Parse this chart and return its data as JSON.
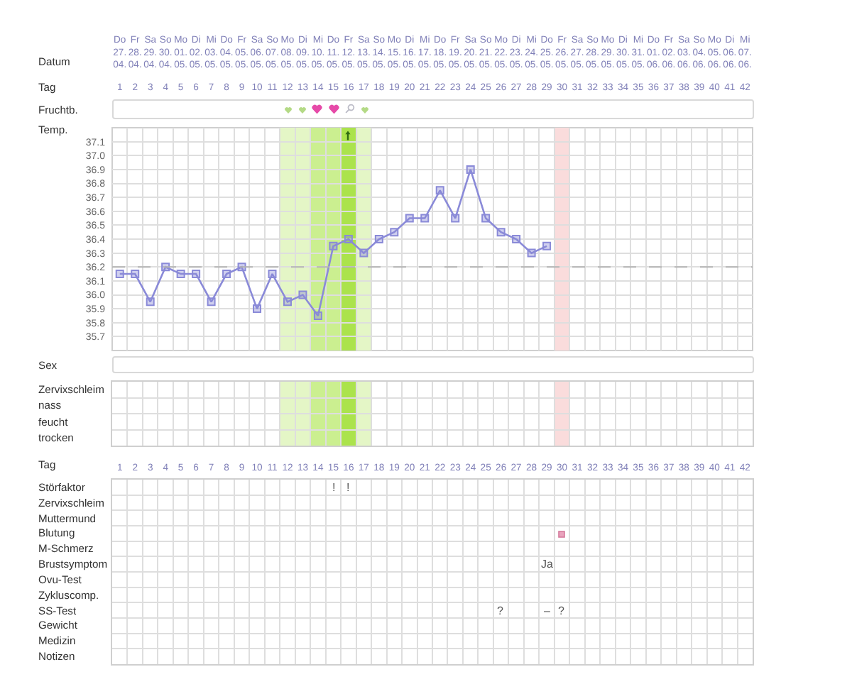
{
  "chart_data": [
    {
      "type": "line",
      "ylabel": "Temp.",
      "xlabel": "Datum",
      "x2label": "Tag",
      "annotations": [
        "Fruchtb."
      ],
      "categories": [
        "Do\n27.\n04.",
        "Fr\n28.\n04.",
        "Sa\n29.\n04.",
        "So\n30.\n04.",
        "Mo\n01.\n05.",
        "Di\n02.\n05.",
        "Mi\n03.\n05.",
        "Do\n04.\n05.",
        "Fr\n05.\n05.",
        "Sa\n06.\n05.",
        "So\n07.\n05.",
        "Mo\n08.\n05.",
        "Di\n09.\n05.",
        "Mi\n10.\n05.",
        "Do\n11.\n05.",
        "Fr\n12.\n05.",
        "Sa\n13.\n05.",
        "So\n14.\n05.",
        "Mo\n15.\n05.",
        "Di\n16.\n05.",
        "Mi\n17.\n05.",
        "Do\n18.\n05.",
        "Fr\n19.\n05.",
        "Sa\n20.\n05.",
        "So\n21.\n05.",
        "Mo\n22.\n05.",
        "Di\n23.\n05.",
        "Mi\n24.\n05.",
        "Do\n25.\n05.",
        "Fr\n26.\n05.",
        "Sa\n27.\n05.",
        "So\n28.\n05.",
        "Mo\n29.\n05.",
        "Di\n30.\n05.",
        "Mi\n31.\n05.",
        "Do\n01.\n06.",
        "Fr\n02.\n06.",
        "Sa\n03.\n06.",
        "So\n04.\n06.",
        "Mo\n05.\n06.",
        "Di\n06.\n06.",
        "Mi\n07.\n06."
      ],
      "series": [
        {
          "color": "#8a8ad8",
          "values": [
            36.15,
            36.15,
            35.95,
            36.2,
            36.15,
            36.15,
            35.95,
            36.15,
            36.2,
            35.9,
            36.15,
            35.95,
            36.0,
            35.85,
            36.35,
            36.4,
            36.3,
            36.4,
            36.45,
            36.55,
            36.55,
            36.75,
            36.55,
            36.9,
            36.55,
            36.45,
            36.4,
            36.3,
            36.35,
            null,
            null,
            null,
            null,
            null,
            null,
            null,
            null,
            null,
            null,
            null,
            null,
            null
          ]
        }
      ],
      "marker": "square",
      "line_style": "solid",
      "grid": true,
      "x2lim": [
        0.5,
        42.5
      ],
      "x2ticks": [
        1,
        2,
        3,
        4,
        5,
        6,
        7,
        8,
        9,
        10,
        11,
        12,
        13,
        14,
        15,
        16,
        17,
        18,
        19,
        20,
        21,
        22,
        23,
        24,
        25,
        26,
        27,
        28,
        29,
        30,
        31,
        32,
        33,
        34,
        35,
        36,
        37,
        38,
        39,
        40,
        41,
        42
      ],
      "ylim": [
        35.6,
        37.2
      ],
      "yticks": [
        35.7,
        35.8,
        35.9,
        {
          "value": 36,
          "label": "36.0"
        },
        36.1,
        36.2,
        36.3,
        36.4,
        36.5,
        36.6,
        36.7,
        36.8,
        36.9,
        {
          "value": 37,
          "label": "37.0"
        },
        37.1
      ],
      "ref_lines": [
        {
          "axis": "y",
          "value": 36.2,
          "color": "#b4b4b4",
          "line_style": "dashed"
        }
      ],
      "bands": [
        {
          "axis": "x",
          "from": "Mo\n08.\n05.",
          "to": "Di\n09.\n05.",
          "color": "#e4f6c6"
        },
        {
          "axis": "x",
          "from": "Mi\n10.\n05.",
          "to": "Do\n11.\n05.",
          "color": "#cbef90"
        },
        {
          "axis": "x",
          "from": "Fr\n12.\n05.",
          "to": "Fr\n12.\n05.",
          "color": "#abe34c"
        },
        {
          "axis": "x",
          "from": "Sa\n13.\n05.",
          "to": "Sa\n13.\n05.",
          "color": "#e4f6c6"
        },
        {
          "axis": "x",
          "from": "Fr\n26.\n05.",
          "to": "Fr\n26.\n05.",
          "color": "#fadcdc"
        }
      ]
    },
    {
      "type": "heatmap",
      "annotations": [
        "Sex"
      ],
      "tick_labels": "y",
      "x": [
        1,
        2,
        3,
        4,
        5,
        6,
        7,
        8,
        9,
        10,
        11,
        12,
        13,
        14,
        15,
        16,
        17,
        18,
        19,
        20,
        21,
        22,
        23,
        24,
        25,
        26,
        27,
        28,
        29,
        30,
        31,
        32,
        33,
        34,
        35,
        36,
        37,
        38,
        39,
        40,
        41,
        42
      ],
      "xlim": [
        0.5,
        42.5
      ],
      "xticks": [
        1,
        2,
        3,
        4,
        5,
        6,
        7,
        8,
        9,
        10,
        11,
        12,
        13,
        14,
        15,
        16,
        17,
        18,
        19,
        20,
        21,
        22,
        23,
        24,
        25,
        26,
        27,
        28,
        29,
        30,
        31,
        32,
        33,
        34,
        35,
        36,
        37,
        38,
        39,
        40,
        41,
        42
      ],
      "y_categories": [
        "Zervixschleim",
        "nass",
        "feucht",
        "trocken"
      ],
      "cells": [
        [
          null,
          null,
          null,
          null,
          null,
          null,
          null,
          null,
          null,
          null,
          null,
          null,
          null,
          null,
          null,
          null,
          null,
          null,
          null,
          null,
          null,
          null,
          null,
          null,
          null,
          null,
          null,
          null,
          null,
          null,
          null,
          null,
          null,
          null,
          null,
          null,
          null,
          null,
          null,
          null,
          null,
          null
        ],
        [
          null,
          null,
          null,
          null,
          null,
          null,
          null,
          null,
          null,
          null,
          null,
          null,
          null,
          null,
          null,
          null,
          null,
          null,
          null,
          null,
          null,
          null,
          null,
          null,
          null,
          null,
          null,
          null,
          null,
          null,
          null,
          null,
          null,
          null,
          null,
          null,
          null,
          null,
          null,
          null,
          null,
          null
        ],
        [
          null,
          null,
          null,
          null,
          null,
          null,
          null,
          null,
          null,
          null,
          null,
          null,
          null,
          null,
          null,
          null,
          null,
          null,
          null,
          null,
          null,
          null,
          null,
          null,
          null,
          null,
          null,
          null,
          null,
          null,
          null,
          null,
          null,
          null,
          null,
          null,
          null,
          null,
          null,
          null,
          null,
          null
        ],
        [
          null,
          null,
          null,
          null,
          null,
          null,
          null,
          null,
          null,
          null,
          null,
          null,
          null,
          null,
          null,
          null,
          null,
          null,
          null,
          null,
          null,
          null,
          null,
          null,
          null,
          null,
          null,
          null,
          null,
          null,
          null,
          null,
          null,
          null,
          null,
          null,
          null,
          null,
          null,
          null,
          null,
          null
        ]
      ],
      "bands": [
        {
          "axis": "x",
          "from": 11.5,
          "to": 13.5,
          "color": "#e4f6c6"
        },
        {
          "axis": "x",
          "from": 13.5,
          "to": 15.5,
          "color": "#cbef90"
        },
        {
          "axis": "x",
          "from": 15.5,
          "to": 16.5,
          "color": "#abe34c"
        },
        {
          "axis": "x",
          "from": 16.5,
          "to": 17.5,
          "color": "#e4f6c6"
        },
        {
          "axis": "x",
          "from": 29.5,
          "to": 30.5,
          "color": "#fadcdc"
        }
      ]
    },
    {
      "type": "heatmap",
      "xlabel": "Tag",
      "x": [
        1,
        2,
        3,
        4,
        5,
        6,
        7,
        8,
        9,
        10,
        11,
        12,
        13,
        14,
        15,
        16,
        17,
        18,
        19,
        20,
        21,
        22,
        23,
        24,
        25,
        26,
        27,
        28,
        29,
        30,
        31,
        32,
        33,
        34,
        35,
        36,
        37,
        38,
        39,
        40,
        41,
        42
      ],
      "xlim": [
        0.5,
        42.5
      ],
      "xticks": [
        1,
        2,
        3,
        4,
        5,
        6,
        7,
        8,
        9,
        10,
        11,
        12,
        13,
        14,
        15,
        16,
        17,
        18,
        19,
        20,
        21,
        22,
        23,
        24,
        25,
        26,
        27,
        28,
        29,
        30,
        31,
        32,
        33,
        34,
        35,
        36,
        37,
        38,
        39,
        40,
        41,
        42
      ],
      "y_categories": [
        "Störfaktor",
        "Zervixschleim",
        "Muttermund",
        "Blutung",
        "M-Schmerz",
        "Brustsymptom",
        "Ovu-Test",
        "Zykluscomp.",
        "SS-Test",
        "Gewicht",
        "Medizin",
        "Notizen"
      ],
      "cells": [
        [
          null,
          null,
          null,
          null,
          null,
          null,
          null,
          null,
          null,
          null,
          null,
          null,
          null,
          null,
          null,
          null,
          null,
          null,
          null,
          null,
          null,
          null,
          null,
          null,
          null,
          null,
          null,
          null,
          null,
          null,
          null,
          null,
          null,
          null,
          null,
          null,
          null,
          null,
          null,
          null,
          null,
          null
        ],
        [
          null,
          null,
          null,
          null,
          null,
          null,
          null,
          null,
          null,
          null,
          null,
          null,
          null,
          null,
          null,
          null,
          null,
          null,
          null,
          null,
          null,
          null,
          null,
          null,
          null,
          null,
          null,
          null,
          null,
          null,
          null,
          null,
          null,
          null,
          null,
          null,
          null,
          null,
          null,
          null,
          null,
          null
        ],
        [
          null,
          null,
          null,
          null,
          null,
          null,
          null,
          null,
          null,
          null,
          null,
          null,
          null,
          null,
          null,
          null,
          null,
          null,
          null,
          null,
          null,
          null,
          null,
          null,
          null,
          null,
          null,
          null,
          null,
          null,
          null,
          null,
          null,
          null,
          null,
          null,
          null,
          null,
          null,
          null,
          null,
          null
        ],
        [
          null,
          null,
          null,
          null,
          null,
          null,
          null,
          null,
          null,
          null,
          null,
          null,
          null,
          null,
          null,
          null,
          null,
          null,
          null,
          null,
          null,
          null,
          null,
          null,
          null,
          null,
          null,
          null,
          null,
          null,
          null,
          null,
          null,
          null,
          null,
          null,
          null,
          null,
          null,
          null,
          null,
          null
        ],
        [
          null,
          null,
          null,
          null,
          null,
          null,
          null,
          null,
          null,
          null,
          null,
          null,
          null,
          null,
          null,
          null,
          null,
          null,
          null,
          null,
          null,
          null,
          null,
          null,
          null,
          null,
          null,
          null,
          null,
          null,
          null,
          null,
          null,
          null,
          null,
          null,
          null,
          null,
          null,
          null,
          null,
          null
        ],
        [
          null,
          null,
          null,
          null,
          null,
          null,
          null,
          null,
          null,
          null,
          null,
          null,
          null,
          null,
          null,
          null,
          null,
          null,
          null,
          null,
          null,
          null,
          null,
          null,
          null,
          null,
          null,
          null,
          null,
          null,
          null,
          null,
          null,
          null,
          null,
          null,
          null,
          null,
          null,
          null,
          null,
          null
        ],
        [
          null,
          null,
          null,
          null,
          null,
          null,
          null,
          null,
          null,
          null,
          null,
          null,
          null,
          null,
          null,
          null,
          null,
          null,
          null,
          null,
          null,
          null,
          null,
          null,
          null,
          null,
          null,
          null,
          null,
          null,
          null,
          null,
          null,
          null,
          null,
          null,
          null,
          null,
          null,
          null,
          null,
          null
        ],
        [
          null,
          null,
          null,
          null,
          null,
          null,
          null,
          null,
          null,
          null,
          null,
          null,
          null,
          null,
          null,
          null,
          null,
          null,
          null,
          null,
          null,
          null,
          null,
          null,
          null,
          null,
          null,
          null,
          null,
          null,
          null,
          null,
          null,
          null,
          null,
          null,
          null,
          null,
          null,
          null,
          null,
          null
        ],
        [
          null,
          null,
          null,
          null,
          null,
          null,
          null,
          null,
          null,
          null,
          null,
          null,
          null,
          null,
          null,
          null,
          null,
          null,
          null,
          null,
          null,
          null,
          null,
          null,
          null,
          null,
          null,
          null,
          null,
          null,
          null,
          null,
          null,
          null,
          null,
          null,
          null,
          null,
          null,
          null,
          null,
          null
        ],
        [
          null,
          null,
          null,
          null,
          null,
          null,
          null,
          null,
          null,
          null,
          null,
          null,
          null,
          null,
          null,
          null,
          null,
          null,
          null,
          null,
          null,
          null,
          null,
          null,
          null,
          null,
          null,
          null,
          null,
          null,
          null,
          null,
          null,
          null,
          null,
          null,
          null,
          null,
          null,
          null,
          null,
          null
        ],
        [
          null,
          null,
          null,
          null,
          null,
          null,
          null,
          null,
          null,
          null,
          null,
          null,
          null,
          null,
          null,
          null,
          null,
          null,
          null,
          null,
          null,
          null,
          null,
          null,
          null,
          null,
          null,
          null,
          null,
          null,
          null,
          null,
          null,
          null,
          null,
          null,
          null,
          null,
          null,
          null,
          null,
          null
        ],
        [
          null,
          null,
          null,
          null,
          null,
          null,
          null,
          null,
          null,
          null,
          null,
          null,
          null,
          null,
          null,
          null,
          null,
          null,
          null,
          null,
          null,
          null,
          null,
          null,
          null,
          null,
          null,
          null,
          null,
          null,
          null,
          null,
          null,
          null,
          null,
          null,
          null,
          null,
          null,
          null,
          null,
          null
        ]
      ],
      "cell_labels": [
        [
          null,
          null,
          null,
          null,
          null,
          null,
          null,
          null,
          null,
          null,
          null,
          null,
          null,
          null,
          "!",
          "!",
          null,
          null,
          null,
          null,
          null,
          null,
          null,
          null,
          null,
          null,
          null,
          null,
          null,
          null,
          null,
          null,
          null,
          null,
          null,
          null,
          null,
          null,
          null,
          null,
          null,
          null
        ],
        [
          null,
          null,
          null,
          null,
          null,
          null,
          null,
          null,
          null,
          null,
          null,
          null,
          null,
          null,
          null,
          null,
          null,
          null,
          null,
          null,
          null,
          null,
          null,
          null,
          null,
          null,
          null,
          null,
          null,
          null,
          null,
          null,
          null,
          null,
          null,
          null,
          null,
          null,
          null,
          null,
          null,
          null
        ],
        [
          null,
          null,
          null,
          null,
          null,
          null,
          null,
          null,
          null,
          null,
          null,
          null,
          null,
          null,
          null,
          null,
          null,
          null,
          null,
          null,
          null,
          null,
          null,
          null,
          null,
          null,
          null,
          null,
          null,
          null,
          null,
          null,
          null,
          null,
          null,
          null,
          null,
          null,
          null,
          null,
          null,
          null
        ],
        [
          null,
          null,
          null,
          null,
          null,
          null,
          null,
          null,
          null,
          null,
          null,
          null,
          null,
          null,
          null,
          null,
          null,
          null,
          null,
          null,
          null,
          null,
          null,
          null,
          null,
          null,
          null,
          null,
          null,
          null,
          null,
          null,
          null,
          null,
          null,
          null,
          null,
          null,
          null,
          null,
          null,
          null
        ],
        [
          null,
          null,
          null,
          null,
          null,
          null,
          null,
          null,
          null,
          null,
          null,
          null,
          null,
          null,
          null,
          null,
          null,
          null,
          null,
          null,
          null,
          null,
          null,
          null,
          null,
          null,
          null,
          null,
          null,
          null,
          null,
          null,
          null,
          null,
          null,
          null,
          null,
          null,
          null,
          null,
          null,
          null
        ],
        [
          null,
          null,
          null,
          null,
          null,
          null,
          null,
          null,
          null,
          null,
          null,
          null,
          null,
          null,
          null,
          null,
          null,
          null,
          null,
          null,
          null,
          null,
          null,
          null,
          null,
          null,
          null,
          null,
          "Ja",
          null,
          null,
          null,
          null,
          null,
          null,
          null,
          null,
          null,
          null,
          null,
          null,
          null
        ],
        [
          null,
          null,
          null,
          null,
          null,
          null,
          null,
          null,
          null,
          null,
          null,
          null,
          null,
          null,
          null,
          null,
          null,
          null,
          null,
          null,
          null,
          null,
          null,
          null,
          null,
          null,
          null,
          null,
          null,
          null,
          null,
          null,
          null,
          null,
          null,
          null,
          null,
          null,
          null,
          null,
          null,
          null
        ],
        [
          null,
          null,
          null,
          null,
          null,
          null,
          null,
          null,
          null,
          null,
          null,
          null,
          null,
          null,
          null,
          null,
          null,
          null,
          null,
          null,
          null,
          null,
          null,
          null,
          null,
          null,
          null,
          null,
          null,
          null,
          null,
          null,
          null,
          null,
          null,
          null,
          null,
          null,
          null,
          null,
          null,
          null
        ],
        [
          null,
          null,
          null,
          null,
          null,
          null,
          null,
          null,
          null,
          null,
          null,
          null,
          null,
          null,
          null,
          null,
          null,
          null,
          null,
          null,
          null,
          null,
          null,
          null,
          null,
          "?",
          null,
          null,
          "–",
          "?",
          null,
          null,
          null,
          null,
          null,
          null,
          null,
          null,
          null,
          null,
          null,
          null
        ],
        [
          null,
          null,
          null,
          null,
          null,
          null,
          null,
          null,
          null,
          null,
          null,
          null,
          null,
          null,
          null,
          null,
          null,
          null,
          null,
          null,
          null,
          null,
          null,
          null,
          null,
          null,
          null,
          null,
          null,
          null,
          null,
          null,
          null,
          null,
          null,
          null,
          null,
          null,
          null,
          null,
          null,
          null
        ],
        [
          null,
          null,
          null,
          null,
          null,
          null,
          null,
          null,
          null,
          null,
          null,
          null,
          null,
          null,
          null,
          null,
          null,
          null,
          null,
          null,
          null,
          null,
          null,
          null,
          null,
          null,
          null,
          null,
          null,
          null,
          null,
          null,
          null,
          null,
          null,
          null,
          null,
          null,
          null,
          null,
          null,
          null
        ],
        [
          null,
          null,
          null,
          null,
          null,
          null,
          null,
          null,
          null,
          null,
          null,
          null,
          null,
          null,
          null,
          null,
          null,
          null,
          null,
          null,
          null,
          null,
          null,
          null,
          null,
          null,
          null,
          null,
          null,
          null,
          null,
          null,
          null,
          null,
          null,
          null,
          null,
          null,
          null,
          null,
          null,
          null
        ]
      ]
    }
  ]
}
